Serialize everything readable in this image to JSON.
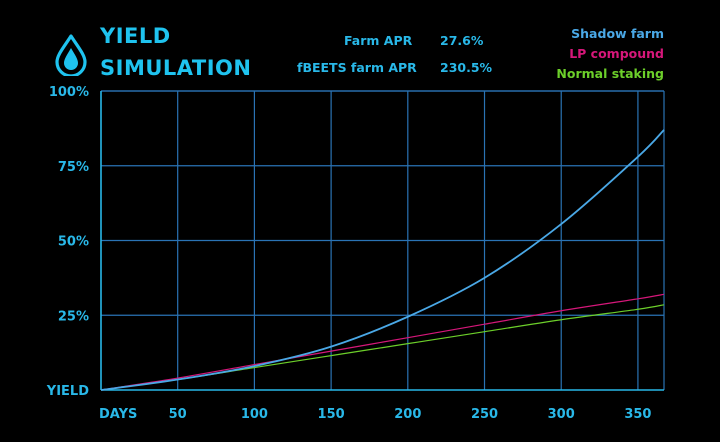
{
  "header": {
    "title_line1": "YIELD",
    "title_line2": "SIMULATION",
    "logo_icon": "water-drop-icon"
  },
  "params": [
    {
      "label": "Farm APR",
      "value": "27.6%"
    },
    {
      "label": "fBEETS farm APR",
      "value": "230.5%"
    }
  ],
  "colors": {
    "accent": "#29b8e8",
    "grid": "#2a73b4",
    "shadow_farm": "#4aa8e6",
    "lp_compound": "#d6177a",
    "normal_staking": "#6ccf2a"
  },
  "chart_data": {
    "type": "line",
    "xlabel": "DAYS",
    "ylabel": "YIELD",
    "xlim": [
      0,
      367
    ],
    "ylim": [
      0,
      100
    ],
    "xticks": [
      50,
      100,
      150,
      200,
      250,
      300,
      350
    ],
    "yticks": [
      25,
      50,
      75,
      100
    ],
    "ytick_labels": [
      "25%",
      "50%",
      "75%",
      "100%"
    ],
    "grid": true,
    "legend_position": "top-right",
    "series": [
      {
        "name": "Shadow farm",
        "color": "#4aa8e6",
        "x": [
          0,
          50,
          100,
          150,
          200,
          250,
          300,
          350,
          367
        ],
        "y": [
          0,
          3.5,
          8,
          14.5,
          24.5,
          37.5,
          55.5,
          78,
          87
        ]
      },
      {
        "name": "LP compound",
        "color": "#d6177a",
        "x": [
          0,
          50,
          100,
          150,
          200,
          250,
          300,
          350,
          367
        ],
        "y": [
          0,
          4,
          8.5,
          13,
          17.5,
          22,
          26.5,
          30.5,
          32
        ]
      },
      {
        "name": "Normal staking",
        "color": "#6ccf2a",
        "x": [
          0,
          50,
          100,
          150,
          200,
          250,
          300,
          350,
          367
        ],
        "y": [
          0,
          3.5,
          7.5,
          11.5,
          15.5,
          19.5,
          23.5,
          27,
          28.5
        ]
      }
    ]
  }
}
